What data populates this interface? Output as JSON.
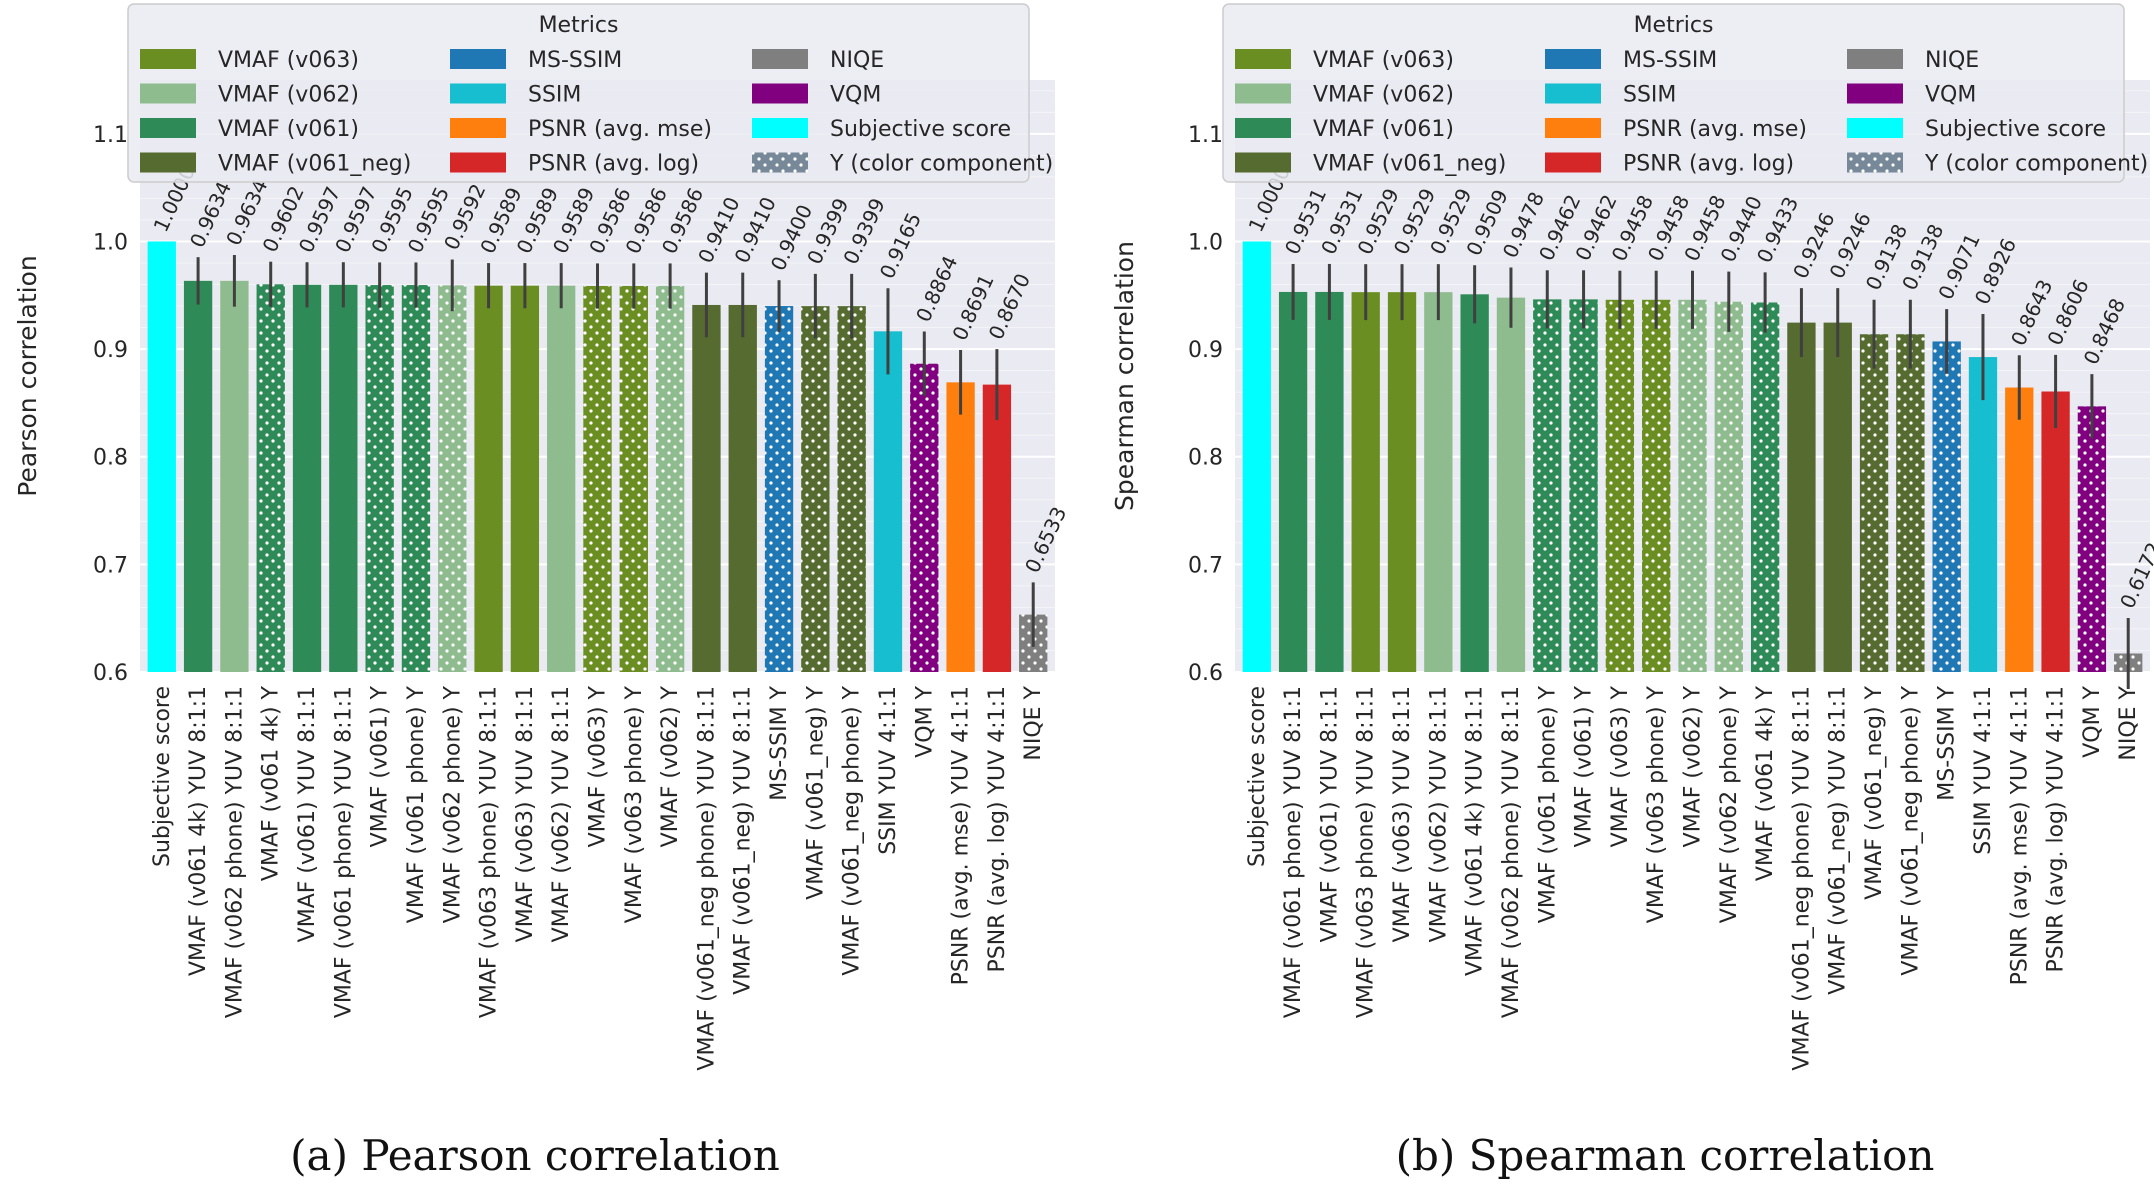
{
  "colors": {
    "vmaf_v063": "#6b8e23",
    "vmaf_v062": "#8fbc8f",
    "vmaf_v061": "#2e8b57",
    "vmaf_v061_neg": "#556b2f",
    "ms_ssim": "#1f77b4",
    "ssim": "#17becf",
    "psnr_mse": "#ff7f0e",
    "psnr_log": "#d62728",
    "niqe": "#7f7f7f",
    "vqm": "#800080",
    "subjective": "#00ffff",
    "y_component": "#778899"
  },
  "legend": {
    "title": "Metrics",
    "items": [
      {
        "label": "VMAF (v063)",
        "color_key": "vmaf_v063",
        "dotted": false
      },
      {
        "label": "VMAF (v062)",
        "color_key": "vmaf_v062",
        "dotted": false
      },
      {
        "label": "VMAF (v061)",
        "color_key": "vmaf_v061",
        "dotted": false
      },
      {
        "label": "VMAF (v061_neg)",
        "color_key": "vmaf_v061_neg",
        "dotted": false
      },
      {
        "label": "MS-SSIM",
        "color_key": "ms_ssim",
        "dotted": false
      },
      {
        "label": "SSIM",
        "color_key": "ssim",
        "dotted": false
      },
      {
        "label": "PSNR (avg. mse)",
        "color_key": "psnr_mse",
        "dotted": false
      },
      {
        "label": "PSNR (avg. log)",
        "color_key": "psnr_log",
        "dotted": false
      },
      {
        "label": "NIQE",
        "color_key": "niqe",
        "dotted": false
      },
      {
        "label": "VQM",
        "color_key": "vqm",
        "dotted": false
      },
      {
        "label": "Subjective score",
        "color_key": "subjective",
        "dotted": false
      },
      {
        "label": "Y (color component)",
        "color_key": "y_component",
        "dotted": true
      }
    ]
  },
  "chart_data": [
    {
      "type": "bar",
      "ylabel": "Pearson correlation",
      "ylim": [
        0.6,
        1.15
      ],
      "yticks": [
        "0.6",
        "0.7",
        "0.8",
        "0.9",
        "1.0",
        "1.1"
      ],
      "caption": "(a) Pearson correlation",
      "grid": true,
      "legend_position": "top",
      "bars": [
        {
          "label": "Subjective score",
          "value": 1.0,
          "value_label": "1.0000",
          "color_key": "subjective",
          "dotted": false,
          "err": 0
        },
        {
          "label": "VMAF (v061 4k) YUV 8:1:1",
          "value": 0.9634,
          "value_label": "0.9634",
          "color_key": "vmaf_v061",
          "dotted": false,
          "err": 0.022
        },
        {
          "label": "VMAF (v062 phone) YUV 8:1:1",
          "value": 0.9634,
          "value_label": "0.9634",
          "color_key": "vmaf_v062",
          "dotted": false,
          "err": 0.024
        },
        {
          "label": "VMAF (v061 4k) Y",
          "value": 0.9602,
          "value_label": "0.9602",
          "color_key": "vmaf_v061",
          "dotted": true,
          "err": 0.021
        },
        {
          "label": "VMAF (v061) YUV 8:1:1",
          "value": 0.9597,
          "value_label": "0.9597",
          "color_key": "vmaf_v061",
          "dotted": false,
          "err": 0.021
        },
        {
          "label": "VMAF (v061 phone) YUV 8:1:1",
          "value": 0.9597,
          "value_label": "0.9597",
          "color_key": "vmaf_v061",
          "dotted": false,
          "err": 0.021
        },
        {
          "label": "VMAF (v061) Y",
          "value": 0.9595,
          "value_label": "0.9595",
          "color_key": "vmaf_v061",
          "dotted": true,
          "err": 0.021
        },
        {
          "label": "VMAF (v061 phone) Y",
          "value": 0.9595,
          "value_label": "0.9595",
          "color_key": "vmaf_v061",
          "dotted": true,
          "err": 0.021
        },
        {
          "label": "VMAF (v062 phone) Y",
          "value": 0.9592,
          "value_label": "0.9592",
          "color_key": "vmaf_v062",
          "dotted": true,
          "err": 0.024
        },
        {
          "label": "VMAF (v063 phone) YUV 8:1:1",
          "value": 0.9589,
          "value_label": "0.9589",
          "color_key": "vmaf_v063",
          "dotted": false,
          "err": 0.021
        },
        {
          "label": "VMAF (v063) YUV 8:1:1",
          "value": 0.9589,
          "value_label": "0.9589",
          "color_key": "vmaf_v063",
          "dotted": false,
          "err": 0.021
        },
        {
          "label": "VMAF (v062) YUV 8:1:1",
          "value": 0.9589,
          "value_label": "0.9589",
          "color_key": "vmaf_v062",
          "dotted": false,
          "err": 0.021
        },
        {
          "label": "VMAF (v063) Y",
          "value": 0.9586,
          "value_label": "0.9586",
          "color_key": "vmaf_v063",
          "dotted": true,
          "err": 0.021
        },
        {
          "label": "VMAF (v063 phone) Y",
          "value": 0.9586,
          "value_label": "0.9586",
          "color_key": "vmaf_v063",
          "dotted": true,
          "err": 0.021
        },
        {
          "label": "VMAF (v062) Y",
          "value": 0.9586,
          "value_label": "0.9586",
          "color_key": "vmaf_v062",
          "dotted": true,
          "err": 0.021
        },
        {
          "label": "VMAF (v061_neg phone) YUV 8:1:1",
          "value": 0.941,
          "value_label": "0.9410",
          "color_key": "vmaf_v061_neg",
          "dotted": false,
          "err": 0.03
        },
        {
          "label": "VMAF (v061_neg) YUV 8:1:1",
          "value": 0.941,
          "value_label": "0.9410",
          "color_key": "vmaf_v061_neg",
          "dotted": false,
          "err": 0.03
        },
        {
          "label": "MS-SSIM Y",
          "value": 0.94,
          "value_label": "0.9400",
          "color_key": "ms_ssim",
          "dotted": true,
          "err": 0.024
        },
        {
          "label": "VMAF (v061_neg) Y",
          "value": 0.9399,
          "value_label": "0.9399",
          "color_key": "vmaf_v061_neg",
          "dotted": true,
          "err": 0.03
        },
        {
          "label": "VMAF (v061_neg phone) Y",
          "value": 0.9399,
          "value_label": "0.9399",
          "color_key": "vmaf_v061_neg",
          "dotted": true,
          "err": 0.03
        },
        {
          "label": "SSIM YUV 4:1:1",
          "value": 0.9165,
          "value_label": "0.9165",
          "color_key": "ssim",
          "dotted": false,
          "err": 0.04
        },
        {
          "label": "VQM Y",
          "value": 0.8864,
          "value_label": "0.8864",
          "color_key": "vqm",
          "dotted": true,
          "err": 0.03
        },
        {
          "label": "PSNR (avg. mse) YUV 4:1:1",
          "value": 0.8691,
          "value_label": "0.8691",
          "color_key": "psnr_mse",
          "dotted": false,
          "err": 0.03
        },
        {
          "label": "PSNR (avg. log) YUV 4:1:1",
          "value": 0.867,
          "value_label": "0.8670",
          "color_key": "psnr_log",
          "dotted": false,
          "err": 0.033
        },
        {
          "label": "NIQE Y",
          "value": 0.6533,
          "value_label": "0.6533",
          "color_key": "niqe",
          "dotted": true,
          "err": 0.03
        }
      ]
    },
    {
      "type": "bar",
      "ylabel": "Spearman correlation",
      "ylim": [
        0.6,
        1.15
      ],
      "yticks": [
        "0.6",
        "0.7",
        "0.8",
        "0.9",
        "1.0",
        "1.1"
      ],
      "caption": "(b) Spearman correlation",
      "grid": true,
      "legend_position": "top",
      "bars": [
        {
          "label": "Subjective score",
          "value": 1.0,
          "value_label": "1.0000",
          "color_key": "subjective",
          "dotted": false,
          "err": 0
        },
        {
          "label": "VMAF (v061 phone) YUV 8:1:1",
          "value": 0.9531,
          "value_label": "0.9531",
          "color_key": "vmaf_v061",
          "dotted": false,
          "err": 0.026
        },
        {
          "label": "VMAF (v061) YUV 8:1:1",
          "value": 0.9531,
          "value_label": "0.9531",
          "color_key": "vmaf_v061",
          "dotted": false,
          "err": 0.026
        },
        {
          "label": "VMAF (v063 phone) YUV 8:1:1",
          "value": 0.9529,
          "value_label": "0.9529",
          "color_key": "vmaf_v063",
          "dotted": false,
          "err": 0.026
        },
        {
          "label": "VMAF (v063) YUV 8:1:1",
          "value": 0.9529,
          "value_label": "0.9529",
          "color_key": "vmaf_v063",
          "dotted": false,
          "err": 0.026
        },
        {
          "label": "VMAF (v062) YUV 8:1:1",
          "value": 0.9529,
          "value_label": "0.9529",
          "color_key": "vmaf_v062",
          "dotted": false,
          "err": 0.026
        },
        {
          "label": "VMAF (v061 4k) YUV 8:1:1",
          "value": 0.9509,
          "value_label": "0.9509",
          "color_key": "vmaf_v061",
          "dotted": false,
          "err": 0.027
        },
        {
          "label": "VMAF (v062 phone) YUV 8:1:1",
          "value": 0.9478,
          "value_label": "0.9478",
          "color_key": "vmaf_v062",
          "dotted": false,
          "err": 0.028
        },
        {
          "label": "VMAF (v061 phone) Y",
          "value": 0.9462,
          "value_label": "0.9462",
          "color_key": "vmaf_v061",
          "dotted": true,
          "err": 0.027
        },
        {
          "label": "VMAF (v061) Y",
          "value": 0.9462,
          "value_label": "0.9462",
          "color_key": "vmaf_v061",
          "dotted": true,
          "err": 0.027
        },
        {
          "label": "VMAF (v063) Y",
          "value": 0.9458,
          "value_label": "0.9458",
          "color_key": "vmaf_v063",
          "dotted": true,
          "err": 0.027
        },
        {
          "label": "VMAF (v063 phone) Y",
          "value": 0.9458,
          "value_label": "0.9458",
          "color_key": "vmaf_v063",
          "dotted": true,
          "err": 0.027
        },
        {
          "label": "VMAF (v062) Y",
          "value": 0.9458,
          "value_label": "0.9458",
          "color_key": "vmaf_v062",
          "dotted": true,
          "err": 0.027
        },
        {
          "label": "VMAF (v062 phone) Y",
          "value": 0.944,
          "value_label": "0.9440",
          "color_key": "vmaf_v062",
          "dotted": true,
          "err": 0.028
        },
        {
          "label": "VMAF (v061 4k) Y",
          "value": 0.9433,
          "value_label": "0.9433",
          "color_key": "vmaf_v061",
          "dotted": true,
          "err": 0.028
        },
        {
          "label": "VMAF (v061_neg phone) YUV 8:1:1",
          "value": 0.9246,
          "value_label": "0.9246",
          "color_key": "vmaf_v061_neg",
          "dotted": false,
          "err": 0.032
        },
        {
          "label": "VMAF (v061_neg) YUV 8:1:1",
          "value": 0.9246,
          "value_label": "0.9246",
          "color_key": "vmaf_v061_neg",
          "dotted": false,
          "err": 0.032
        },
        {
          "label": "VMAF (v061_neg) Y",
          "value": 0.9138,
          "value_label": "0.9138",
          "color_key": "vmaf_v061_neg",
          "dotted": true,
          "err": 0.032
        },
        {
          "label": "VMAF (v061_neg phone) Y",
          "value": 0.9138,
          "value_label": "0.9138",
          "color_key": "vmaf_v061_neg",
          "dotted": true,
          "err": 0.032
        },
        {
          "label": "MS-SSIM Y",
          "value": 0.9071,
          "value_label": "0.9071",
          "color_key": "ms_ssim",
          "dotted": true,
          "err": 0.03
        },
        {
          "label": "SSIM YUV 4:1:1",
          "value": 0.8926,
          "value_label": "0.8926",
          "color_key": "ssim",
          "dotted": false,
          "err": 0.04
        },
        {
          "label": "PSNR (avg. mse) YUV 4:1:1",
          "value": 0.8643,
          "value_label": "0.8643",
          "color_key": "psnr_mse",
          "dotted": false,
          "err": 0.03
        },
        {
          "label": "PSNR (avg. log) YUV 4:1:1",
          "value": 0.8606,
          "value_label": "0.8606",
          "color_key": "psnr_log",
          "dotted": false,
          "err": 0.034
        },
        {
          "label": "VQM Y",
          "value": 0.8468,
          "value_label": "0.8468",
          "color_key": "vqm",
          "dotted": true,
          "err": 0.03
        },
        {
          "label": "NIQE Y",
          "value": 0.6172,
          "value_label": "0.6172",
          "color_key": "niqe",
          "dotted": true,
          "err": 0.033
        }
      ]
    }
  ]
}
